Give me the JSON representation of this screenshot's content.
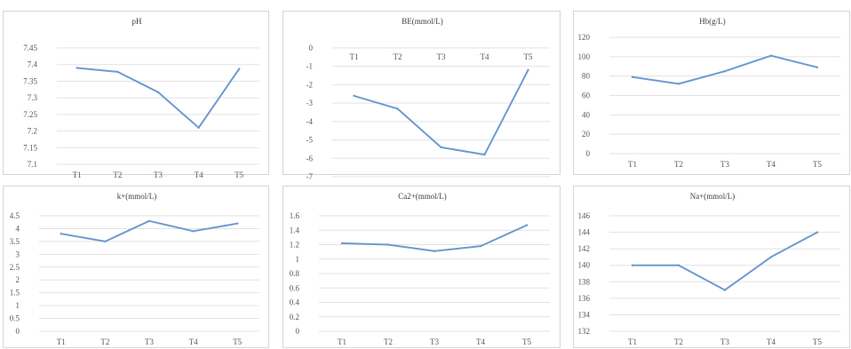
{
  "line_color": "#6d9bd0",
  "chart_data": [
    {
      "type": "line",
      "title": "pH",
      "categories": [
        "T1",
        "T2",
        "T3",
        "T4",
        "T5"
      ],
      "y_ticks": [
        "7.1",
        "7.15",
        "7.2",
        "7.25",
        "7.3",
        "7.35",
        "7.4",
        "7.45"
      ],
      "ylim": [
        7.1,
        7.45
      ],
      "series": [
        {
          "values": [
            7.39,
            7.378,
            7.317,
            7.21,
            7.387
          ]
        }
      ],
      "xaxis_position": "bottom",
      "grid": true
    },
    {
      "type": "line",
      "title": "BE(mmol/L)",
      "categories": [
        "T1",
        "T2",
        "T3",
        "T4",
        "T5"
      ],
      "y_ticks": [
        "0",
        "-1",
        "-2",
        "-3",
        "-4",
        "-5",
        "-6",
        "-7"
      ],
      "ylim": [
        -7,
        0
      ],
      "series": [
        {
          "values": [
            -2.6,
            -3.3,
            -5.4,
            -5.8,
            -1.2
          ]
        }
      ],
      "xaxis_position": "top",
      "grid": true
    },
    {
      "type": "line",
      "title": "Hb(g/L)",
      "categories": [
        "T1",
        "T2",
        "T3",
        "T4",
        "T5"
      ],
      "y_ticks": [
        "0",
        "20",
        "40",
        "60",
        "80",
        "100",
        "120"
      ],
      "ylim": [
        0,
        120
      ],
      "series": [
        {
          "values": [
            79,
            72,
            85,
            101,
            89
          ]
        }
      ],
      "xaxis_position": "bottom",
      "grid": true
    },
    {
      "type": "line",
      "title": "k+(mmol/L)",
      "categories": [
        "T1",
        "T2",
        "T3",
        "T4",
        "T5"
      ],
      "y_ticks": [
        "0",
        "0.5",
        "1",
        "1.5",
        "2",
        "2.5",
        "3",
        "3.5",
        "4",
        "4.5"
      ],
      "ylim": [
        0,
        4.5
      ],
      "series": [
        {
          "values": [
            3.8,
            3.5,
            4.3,
            3.9,
            4.2
          ]
        }
      ],
      "xaxis_position": "bottom",
      "grid": true
    },
    {
      "type": "line",
      "title": "Ca2+(mmol/L)",
      "categories": [
        "T1",
        "T2",
        "T3",
        "T4",
        "T5"
      ],
      "y_ticks": [
        "0",
        "0.2",
        "0.4",
        "0.6",
        "0.8",
        "1",
        "1.2",
        "1.4",
        "1.6"
      ],
      "ylim": [
        0,
        1.6
      ],
      "series": [
        {
          "values": [
            1.22,
            1.2,
            1.11,
            1.18,
            1.47
          ]
        }
      ],
      "xaxis_position": "bottom",
      "grid": true
    },
    {
      "type": "line",
      "title": "Na+(mmol/L)",
      "categories": [
        "T1",
        "T2",
        "T3",
        "T4",
        "T5"
      ],
      "y_ticks": [
        "132",
        "134",
        "136",
        "138",
        "140",
        "142",
        "144",
        "146"
      ],
      "ylim": [
        132,
        146
      ],
      "series": [
        {
          "values": [
            140,
            140,
            137,
            141,
            144
          ]
        }
      ],
      "xaxis_position": "bottom",
      "grid": true
    }
  ]
}
